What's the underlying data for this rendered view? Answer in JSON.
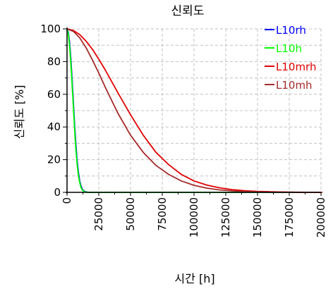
{
  "chart_data": {
    "type": "line",
    "title": "신뢰도",
    "xlabel": "시간 [h]",
    "ylabel": "신뢰도 [%]",
    "xlim": [
      0,
      200000
    ],
    "ylim": [
      0,
      100
    ],
    "x_ticks": [
      0,
      25000,
      50000,
      75000,
      100000,
      125000,
      150000,
      175000,
      200000
    ],
    "x_tick_labels": [
      "0",
      "25000",
      "50000",
      "75000",
      "100000",
      "125000",
      "150000",
      "175000",
      "200000"
    ],
    "y_ticks": [
      0,
      20,
      40,
      60,
      80,
      100
    ],
    "y_tick_labels": [
      "0",
      "20",
      "40",
      "60",
      "80",
      "100"
    ],
    "grid": true,
    "legend_position": "top-right",
    "series": [
      {
        "name": "L10rh",
        "color": "#0000ff",
        "x": [
          0,
          1000,
          2000,
          3000,
          4000,
          5000,
          6000,
          7000,
          8000,
          9000,
          10000,
          11000,
          12000,
          13000,
          14000,
          16000,
          20000,
          210000
        ],
        "y": [
          100,
          98,
          92,
          82,
          69,
          55,
          41,
          29,
          19,
          12,
          7,
          4,
          2,
          1,
          0.5,
          0.1,
          0,
          0
        ]
      },
      {
        "name": "L10h",
        "color": "#00ff00",
        "x": [
          0,
          1000,
          2000,
          3000,
          4000,
          5000,
          6000,
          7000,
          8000,
          9000,
          10000,
          11000,
          12000,
          13000,
          14000,
          16000,
          20000,
          210000
        ],
        "y": [
          100,
          97,
          90,
          79,
          66,
          52,
          38,
          26,
          17,
          10,
          6,
          3,
          1.5,
          0.7,
          0.3,
          0.1,
          0,
          0
        ]
      },
      {
        "name": "L10mrh",
        "color": "#e00000",
        "x": [
          0,
          5000,
          10000,
          15000,
          20000,
          25000,
          30000,
          40000,
          50000,
          60000,
          70000,
          80000,
          90000,
          100000,
          110000,
          120000,
          130000,
          140000,
          150000,
          160000,
          170000,
          180000,
          190000,
          200000,
          210000
        ],
        "y": [
          100,
          99,
          96.5,
          92.5,
          87.5,
          81.5,
          75,
          61,
          47.5,
          35,
          24.5,
          17,
          11,
          7,
          4.5,
          2.8,
          1.7,
          1,
          0.6,
          0.4,
          0.2,
          0.1,
          0.05,
          0.02,
          0
        ]
      },
      {
        "name": "L10mh",
        "color": "#a52a2a",
        "x": [
          0,
          5000,
          10000,
          15000,
          20000,
          25000,
          30000,
          40000,
          50000,
          60000,
          70000,
          80000,
          90000,
          100000,
          110000,
          120000,
          130000,
          140000,
          150000,
          160000,
          180000,
          210000
        ],
        "y": [
          100,
          98.5,
          94.5,
          88.5,
          81,
          73,
          64.5,
          48.5,
          35,
          24.5,
          16.5,
          11,
          7,
          4.3,
          2.6,
          1.5,
          0.9,
          0.5,
          0.3,
          0.15,
          0.05,
          0
        ]
      }
    ]
  }
}
